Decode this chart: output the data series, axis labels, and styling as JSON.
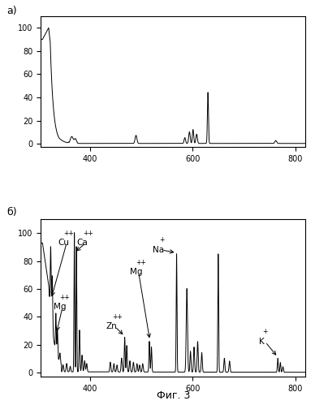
{
  "fig_width": 3.88,
  "fig_height": 4.99,
  "dpi": 100,
  "bg_color": "#ffffff",
  "line_color": "#000000",
  "xlabel_bottom": "Фиг. 3",
  "panel_a_label": "а)",
  "panel_b_label": "б)",
  "xlim": [
    305,
    820
  ],
  "xticks": [
    400,
    600,
    800
  ],
  "ylim_a": [
    -3,
    110
  ],
  "ylim_b": [
    -3,
    110
  ],
  "yticks": [
    0,
    20,
    40,
    60,
    80,
    100
  ]
}
